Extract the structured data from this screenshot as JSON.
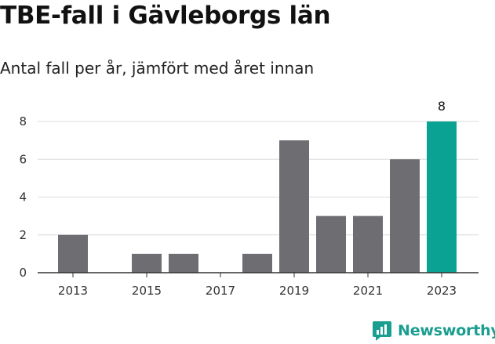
{
  "chart_data": {
    "type": "bar",
    "title": "TBE-fall i Gävleborgs län",
    "subtitle": "Antal fall per år, jämfört med året innan",
    "categories": [
      "2013",
      "2014",
      "2015",
      "2016",
      "2017",
      "2018",
      "2019",
      "2020",
      "2021",
      "2022",
      "2023"
    ],
    "values": [
      2,
      0,
      1,
      1,
      0,
      1,
      7,
      3,
      3,
      6,
      8
    ],
    "xticks": [
      "2013",
      "2015",
      "2017",
      "2019",
      "2021",
      "2023"
    ],
    "yticks": [
      0,
      2,
      4,
      6,
      8
    ],
    "ylim": [
      0,
      8
    ],
    "highlight_index": 10,
    "data_labels": [
      {
        "index": 10,
        "text": "8"
      }
    ],
    "grid": true,
    "colors": {
      "bar": "#6e6d72",
      "highlight": "#0aa293",
      "grid": "#dcdcdc",
      "axis": "#333333"
    }
  },
  "brand": {
    "name": "Newsworthy",
    "icon": "newsworthy-logo-icon",
    "color": "#1a9e8f"
  }
}
